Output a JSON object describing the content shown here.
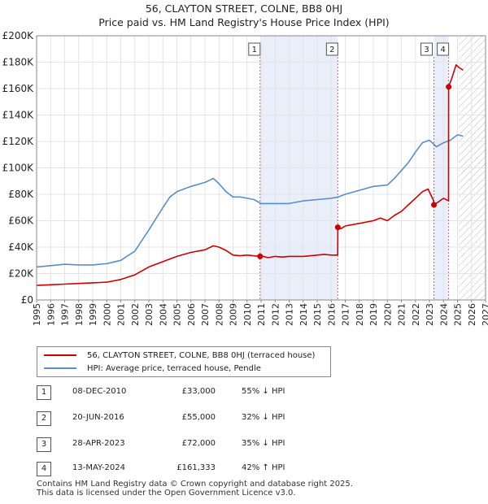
{
  "title": {
    "line1": "56, CLAYTON STREET, COLNE, BB8 0HJ",
    "line2": "Price paid vs. HM Land Registry's House Price Index (HPI)"
  },
  "colors": {
    "property": "#cc0000",
    "hpi": "#5b8ec6",
    "shade": "#e8eefa",
    "marker_line": "#e06060"
  },
  "chart_data": {
    "type": "line",
    "title": "Price paid vs. HM Land Registry's House Price Index (HPI)",
    "xlim": [
      1995,
      2027
    ],
    "ylim": [
      0,
      200000
    ],
    "x_ticks": [
      "1995",
      "1996",
      "1997",
      "1998",
      "1999",
      "2000",
      "2001",
      "2002",
      "2003",
      "2004",
      "2005",
      "2006",
      "2007",
      "2008",
      "2009",
      "2010",
      "2011",
      "2012",
      "2013",
      "2014",
      "2015",
      "2016",
      "2017",
      "2018",
      "2019",
      "2020",
      "2021",
      "2022",
      "2023",
      "2024",
      "2025",
      "2026",
      "2027"
    ],
    "y_ticks": [
      {
        "value": 0,
        "label": "£0"
      },
      {
        "value": 20000,
        "label": "£20K"
      },
      {
        "value": 40000,
        "label": "£40K"
      },
      {
        "value": 60000,
        "label": "£60K"
      },
      {
        "value": 80000,
        "label": "£80K"
      },
      {
        "value": 100000,
        "label": "£100K"
      },
      {
        "value": 120000,
        "label": "£120K"
      },
      {
        "value": 140000,
        "label": "£140K"
      },
      {
        "value": 160000,
        "label": "£160K"
      },
      {
        "value": 180000,
        "label": "£180K"
      },
      {
        "value": 200000,
        "label": "£200K"
      }
    ],
    "shaded_ranges": [
      [
        2010.93,
        2016.47
      ],
      [
        2023.32,
        2024.37
      ]
    ],
    "hatch_from": 2025.1,
    "series": [
      {
        "name": "56, CLAYTON STREET, COLNE, BB8 0HJ (terraced house)",
        "x": [
          1995,
          1996,
          1997,
          1998,
          1999,
          2000,
          2001,
          2002,
          2003,
          2004,
          2005,
          2006,
          2007,
          2007.6,
          2008,
          2008.5,
          2009,
          2009.5,
          2010,
          2010.93,
          2011,
          2011.5,
          2012,
          2012.5,
          2013,
          2014,
          2015,
          2015.5,
          2016,
          2016.46,
          2016.47,
          2016.7,
          2017,
          2018,
          2019,
          2019.5,
          2020,
          2020.5,
          2021,
          2021.5,
          2022,
          2022.5,
          2022.9,
          2023.3,
          2023.32,
          2023.6,
          2024,
          2024.36,
          2024.37,
          2024.6,
          2024.9,
          2025.1,
          2025.4
        ],
        "values": [
          11000,
          11500,
          12000,
          12500,
          13000,
          13500,
          15500,
          19000,
          25000,
          29000,
          33000,
          36000,
          38000,
          41000,
          40000,
          37500,
          34000,
          33500,
          34000,
          33000,
          33500,
          32000,
          33000,
          32500,
          33000,
          33000,
          34000,
          34500,
          34000,
          34000,
          55000,
          54000,
          56000,
          58000,
          60000,
          62000,
          60000,
          64000,
          67000,
          72000,
          77000,
          82000,
          84000,
          75000,
          72000,
          74000,
          77000,
          75000,
          161333,
          168000,
          178000,
          176000,
          174000
        ]
      },
      {
        "name": "HPI: Average price, terraced house, Pendle",
        "x": [
          1995,
          1996,
          1997,
          1998,
          1999,
          2000,
          2001,
          2002,
          2003,
          2004,
          2004.5,
          2005,
          2006,
          2007,
          2007.6,
          2008,
          2008.5,
          2009,
          2009.5,
          2010,
          2010.5,
          2011,
          2011.5,
          2012,
          2013,
          2014,
          2015,
          2016,
          2016.5,
          2017,
          2018,
          2019,
          2020,
          2020.5,
          2021,
          2021.5,
          2022,
          2022.5,
          2023,
          2023.5,
          2024,
          2024.5,
          2025,
          2025.4
        ],
        "values": [
          25000,
          26000,
          27000,
          26500,
          26500,
          27500,
          30000,
          37000,
          53000,
          70000,
          78000,
          82000,
          86000,
          89000,
          92000,
          88000,
          82000,
          78000,
          78000,
          77000,
          76000,
          73000,
          73000,
          73000,
          73000,
          75000,
          76000,
          77000,
          78000,
          80000,
          83000,
          86000,
          87000,
          92000,
          98000,
          104000,
          112000,
          119000,
          121000,
          116000,
          119000,
          121000,
          125000,
          124000
        ]
      }
    ],
    "sales": [
      {
        "n": "1",
        "x": 2010.93,
        "value": 33000
      },
      {
        "n": "2",
        "x": 2016.47,
        "value": 55000
      },
      {
        "n": "3",
        "x": 2023.32,
        "value": 72000
      },
      {
        "n": "4",
        "x": 2024.37,
        "value": 161333
      }
    ]
  },
  "legend": {
    "property": "56, CLAYTON STREET, COLNE, BB8 0HJ (terraced house)",
    "hpi": "HPI: Average price, terraced house, Pendle"
  },
  "table": [
    {
      "n": "1",
      "date": "08-DEC-2010",
      "price": "£33,000",
      "hpi": "55% ↓ HPI"
    },
    {
      "n": "2",
      "date": "20-JUN-2016",
      "price": "£55,000",
      "hpi": "32% ↓ HPI"
    },
    {
      "n": "3",
      "date": "28-APR-2023",
      "price": "£72,000",
      "hpi": "35% ↓ HPI"
    },
    {
      "n": "4",
      "date": "13-MAY-2024",
      "price": "£161,333",
      "hpi": "42% ↑ HPI"
    }
  ],
  "footer": {
    "line1": "Contains HM Land Registry data © Crown copyright and database right 2025.",
    "line2": "This data is licensed under the Open Government Licence v3.0."
  }
}
